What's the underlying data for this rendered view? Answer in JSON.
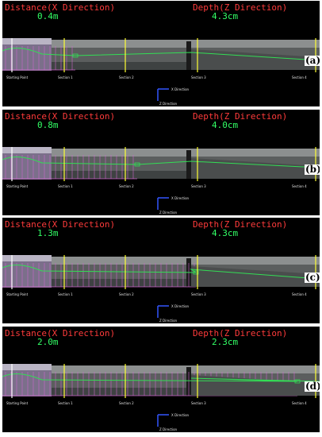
{
  "labels": {
    "distance": "Distance(X Direction)",
    "depth": "Depth(Z Direction)",
    "starting_point": "Starting Point",
    "section1": "Section 1",
    "section2": "Section 2",
    "section3": "Section 3",
    "section4": "Section 4",
    "x_direction": "X Direction",
    "z_direction": "Z Direction"
  },
  "panels": [
    {
      "tag": "(a)",
      "distance": "0.4m",
      "depth": "4.3cm"
    },
    {
      "tag": "(b)",
      "distance": "0.8m",
      "depth": "4.0cm"
    },
    {
      "tag": "(c)",
      "distance": "1.3m",
      "depth": "4.3cm"
    },
    {
      "tag": "(d)",
      "distance": "2.0m",
      "depth": "2.3cm"
    }
  ],
  "colors": {
    "header_text": "#ff3b3b",
    "value_text": "#33ff66",
    "profile_line": "#33dd55",
    "grid_lines": "#cc66cc",
    "section_line": "#ffff33",
    "axis_blue": "#3355ff"
  }
}
